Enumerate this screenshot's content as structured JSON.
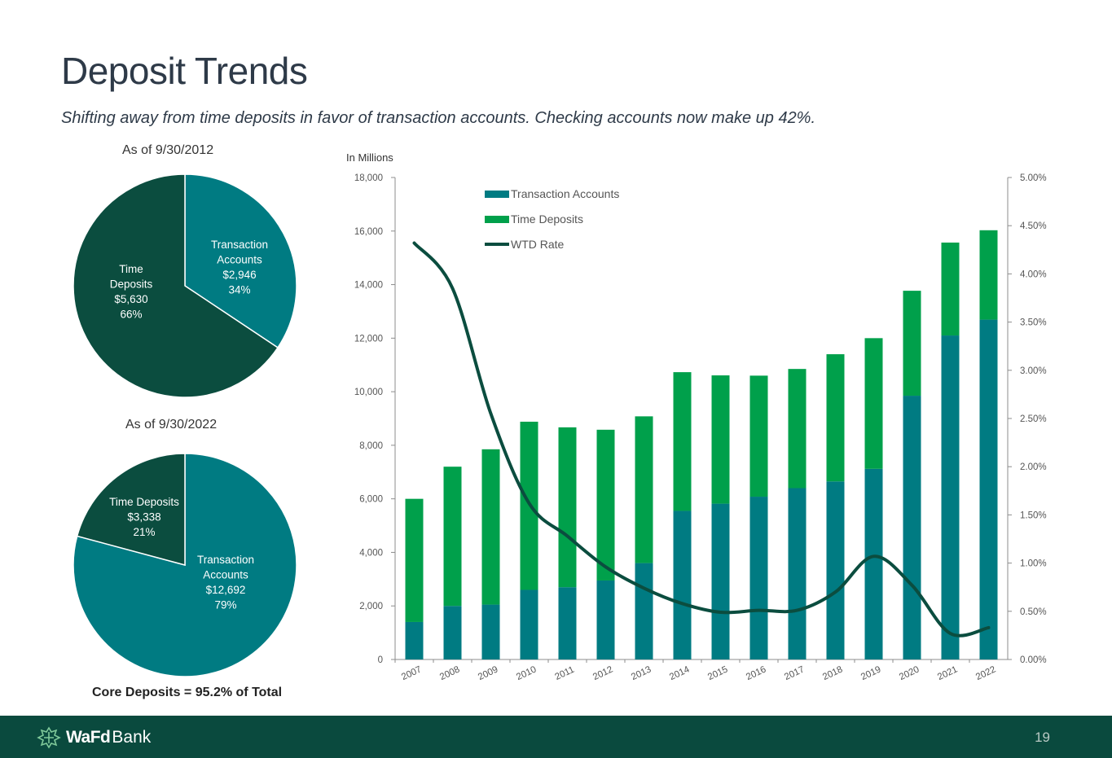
{
  "slide": {
    "title": "Deposit Trends",
    "subtitle": "Shifting away from time deposits in favor of transaction accounts.  Checking accounts now make up 42%.",
    "core_note": "Core Deposits = 95.2% of Total",
    "page_number": "19"
  },
  "brand": {
    "logo_bold": "WaFd",
    "logo_text": "Bank",
    "footer_color": "#0a4a3e"
  },
  "colors": {
    "transaction": "#007b82",
    "time_deposits": "#00a04b",
    "wtd_rate": "#0b4d3f",
    "pie_time_dark": "#0b4d3f"
  },
  "chart_data": [
    {
      "type": "pie",
      "title": "As of 9/30/2012",
      "slices": [
        {
          "label": "Transaction Accounts",
          "label_lines": [
            "Transaction",
            "Accounts"
          ],
          "amount": "$2,946",
          "percent_label": "34%",
          "value": 2946
        },
        {
          "label": "Time Deposits",
          "label_lines": [
            "Time",
            "Deposits"
          ],
          "amount": "$5,630",
          "percent_label": "66%",
          "value": 5630
        }
      ]
    },
    {
      "type": "pie",
      "title": "As of 9/30/2022",
      "slices": [
        {
          "label": "Transaction Accounts",
          "label_lines": [
            "Transaction",
            "Accounts"
          ],
          "amount": "$12,692",
          "percent_label": "79%",
          "value": 12692
        },
        {
          "label": "Time Deposits",
          "label_lines": [
            "Time Deposits"
          ],
          "amount": "$3,338",
          "percent_label": "21%",
          "value": 3338
        }
      ]
    },
    {
      "type": "bar",
      "stacked": true,
      "ylabel": "In Millions",
      "categories": [
        "2007",
        "2008",
        "2009",
        "2010",
        "2011",
        "2012",
        "2013",
        "2014",
        "2015",
        "2016",
        "2017",
        "2018",
        "2019",
        "2020",
        "2021",
        "2022"
      ],
      "series": [
        {
          "name": "Transaction Accounts",
          "values": [
            1400,
            2000,
            2050,
            2600,
            2700,
            2950,
            3600,
            5550,
            5820,
            6080,
            6400,
            6650,
            7120,
            9850,
            12100,
            12692
          ]
        },
        {
          "name": "Time Deposits",
          "values": [
            4600,
            5200,
            5800,
            6280,
            5970,
            5630,
            5480,
            5180,
            4790,
            4520,
            4450,
            4750,
            4880,
            3920,
            3470,
            3338
          ]
        }
      ],
      "line_series": {
        "name": "WTD Rate",
        "axis": "right",
        "values": [
          4.32,
          3.85,
          2.55,
          1.62,
          1.28,
          0.96,
          0.74,
          0.58,
          0.49,
          0.51,
          0.51,
          0.7,
          1.07,
          0.77,
          0.27,
          0.33
        ]
      },
      "ylim": [
        0,
        18000
      ],
      "yticks": [
        "0",
        "2,000",
        "4,000",
        "6,000",
        "8,000",
        "10,000",
        "12,000",
        "14,000",
        "16,000",
        "18,000"
      ],
      "y2lim": [
        0,
        5
      ],
      "y2ticks": [
        "0.00%",
        "0.50%",
        "1.00%",
        "1.50%",
        "2.00%",
        "2.50%",
        "3.00%",
        "3.50%",
        "4.00%",
        "4.50%",
        "5.00%"
      ],
      "legend": [
        "Transaction Accounts",
        "Time Deposits",
        "WTD Rate"
      ],
      "legend_position": "top-left"
    }
  ]
}
